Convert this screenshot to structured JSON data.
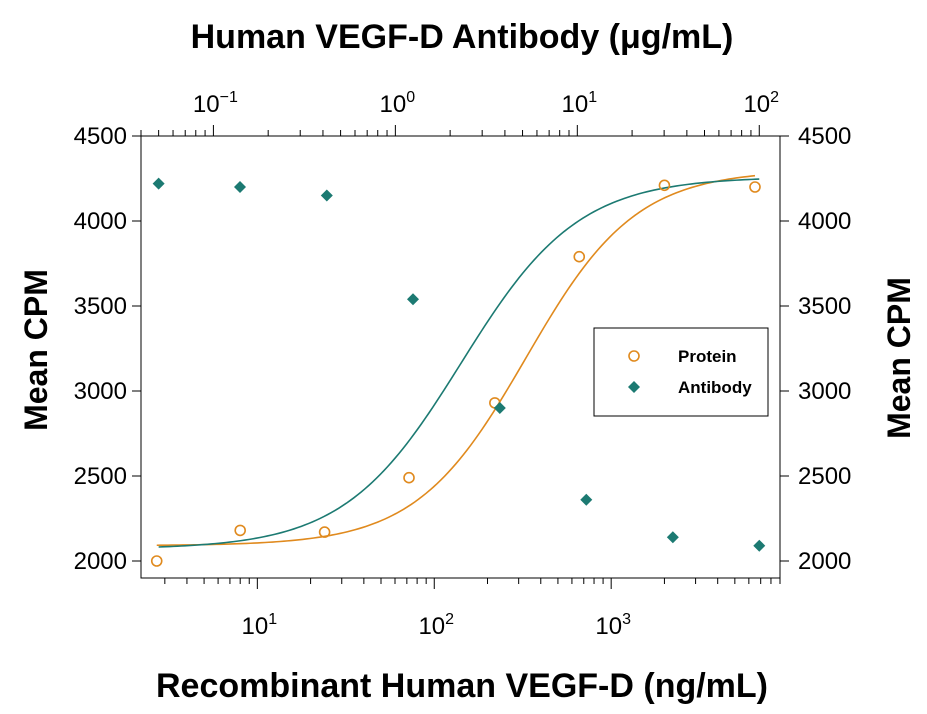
{
  "chart_data": {
    "type": "scatter",
    "title": "Human VEGF-D Antibody (μg/mL)",
    "xlabel": "Recombinant Human VEGF-D (ng/mL)",
    "ylabel_left": "Mean CPM",
    "ylabel_right": "Mean CPM",
    "x_scale": "log",
    "x_range_ng_ml": [
      2.2,
      9000
    ],
    "top_axis": {
      "label": "Human VEGF-D Antibody (μg/mL)",
      "scale": "log",
      "range_ug_ml": [
        0.04,
        130
      ],
      "ticks": [
        {
          "base": "10",
          "exp": "−1",
          "value": 0.1
        },
        {
          "base": "10",
          "exp": "0",
          "value": 1
        },
        {
          "base": "10",
          "exp": "1",
          "value": 10
        },
        {
          "base": "10",
          "exp": "2",
          "value": 100
        }
      ]
    },
    "bottom_ticks": [
      {
        "base": "10",
        "exp": "1",
        "value": 10
      },
      {
        "base": "10",
        "exp": "2",
        "value": 100
      },
      {
        "base": "10",
        "exp": "3",
        "value": 1000
      }
    ],
    "ylim": [
      1900,
      4500
    ],
    "y_ticks": [
      "2000",
      "2500",
      "3000",
      "3500",
      "4000",
      "4500"
    ],
    "grid": false,
    "legend_position": "right",
    "series": [
      {
        "name": "Protein",
        "axis": "bottom",
        "marker": "open-circle",
        "color": "#e08a1e",
        "x": [
          2.7,
          8,
          24,
          72,
          220,
          660,
          2000,
          6500
        ],
        "y": [
          2000,
          2180,
          2170,
          2490,
          2930,
          3790,
          4210,
          4200
        ],
        "fit": {
          "bottom": 2090,
          "top": 4300,
          "ec50": 330,
          "hill": 1.4
        }
      },
      {
        "name": "Antibody",
        "axis": "top",
        "marker": "filled-diamond",
        "color": "#1c7a72",
        "x": [
          0.05,
          0.14,
          0.42,
          1.25,
          3.75,
          11.2,
          33.5,
          100
        ],
        "y": [
          4220,
          4200,
          4150,
          3540,
          2900,
          2360,
          2140,
          2090
        ],
        "fit": {
          "bottom": 2070,
          "top": 4260,
          "ec50": 2.3,
          "hill": 1.35
        }
      }
    ]
  }
}
